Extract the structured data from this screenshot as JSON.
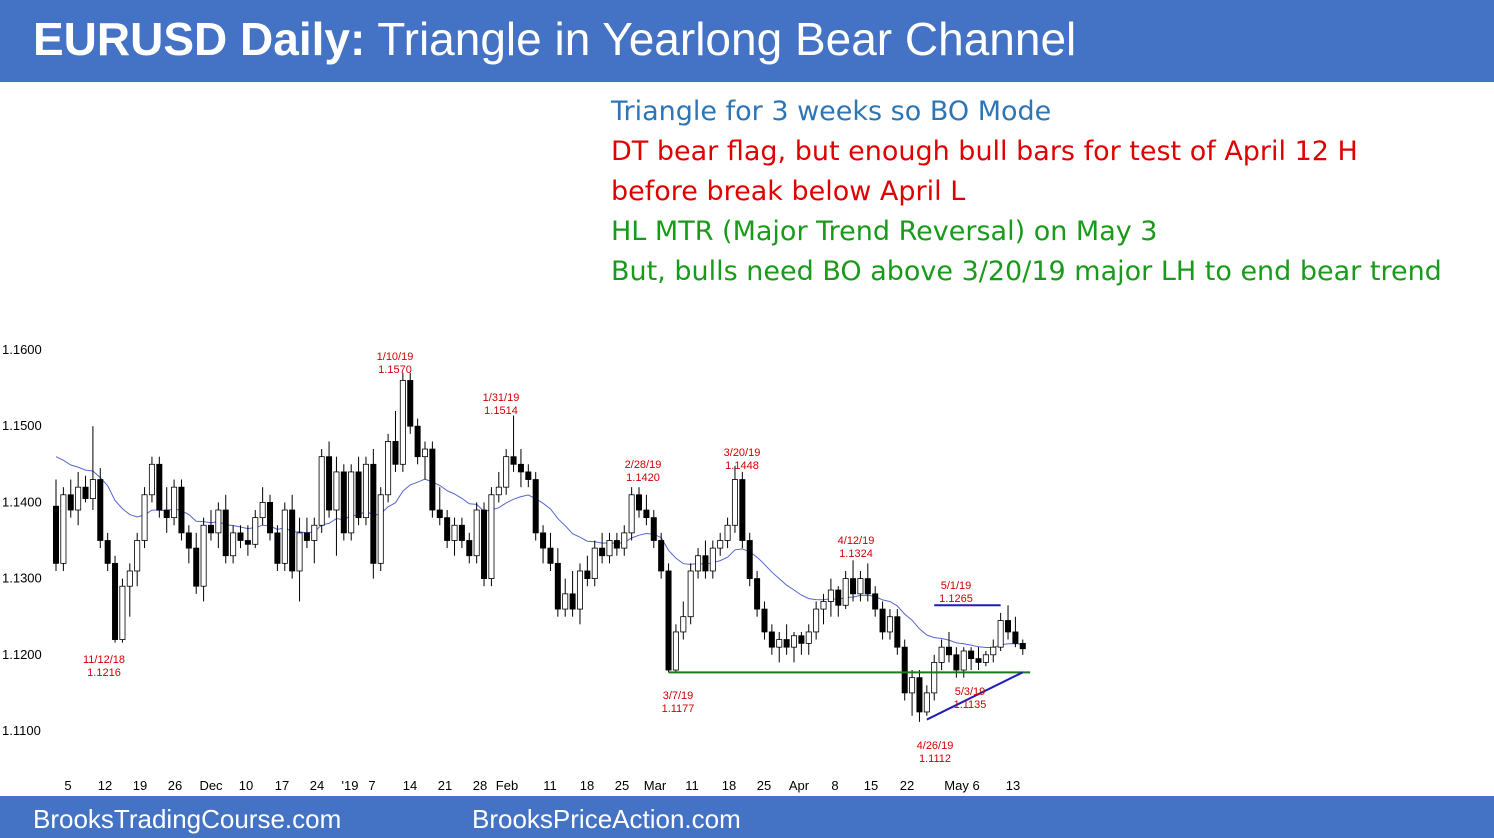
{
  "header": {
    "title_bold": "EURUSD Daily:",
    "title_rest": " Triangle in Yearlong Bear Channel"
  },
  "notes": [
    {
      "text": "Triangle for 3 weeks so BO Mode",
      "color": "#2e75b6"
    },
    {
      "text": "DT bear flag, but enough bull bars for test of April 12 H",
      "color": "#e00000"
    },
    {
      "text": "before break below April L",
      "color": "#e00000"
    },
    {
      "text": "HL MTR (Major Trend Reversal) on May 3",
      "color": "#1a9a1a"
    },
    {
      "text": "But, bulls need BO above 3/20/19 major LH to end bear trend",
      "color": "#1a9a1a"
    }
  ],
  "footer": {
    "left": "BrooksTradingCourse.com",
    "right": "BrooksPriceAction.com"
  },
  "chart_data": {
    "type": "candlestick",
    "y_ticks": [
      "1.1600",
      "1.1500",
      "1.1400",
      "1.1300",
      "1.1200",
      "1.1100"
    ],
    "ylim": [
      1.1075,
      1.1625
    ],
    "x_ticks": [
      "5",
      "12",
      "19",
      "26",
      "Dec",
      "10",
      "17",
      "24",
      "'19",
      "7",
      "14",
      "21",
      "28",
      "Feb",
      "11",
      "18",
      "25",
      "Mar",
      "11",
      "18",
      "25",
      "Apr",
      "8",
      "15",
      "22",
      "May 6",
      "13"
    ],
    "bar_up_color": "#ffffff",
    "bar_down_color": "#000000",
    "ema_color": "#5566cc",
    "bars": [
      [
        1.1395,
        1.143,
        1.131,
        1.132
      ],
      [
        1.132,
        1.142,
        1.131,
        1.141
      ],
      [
        1.141,
        1.143,
        1.138,
        1.139
      ],
      [
        1.139,
        1.144,
        1.137,
        1.142
      ],
      [
        1.142,
        1.1435,
        1.14,
        1.1405
      ],
      [
        1.1405,
        1.15,
        1.139,
        1.143
      ],
      [
        1.143,
        1.1445,
        1.134,
        1.135
      ],
      [
        1.135,
        1.136,
        1.131,
        1.132
      ],
      [
        1.132,
        1.133,
        1.1216,
        1.122
      ],
      [
        1.122,
        1.13,
        1.1216,
        1.129
      ],
      [
        1.129,
        1.132,
        1.125,
        1.131
      ],
      [
        1.131,
        1.136,
        1.129,
        1.135
      ],
      [
        1.135,
        1.142,
        1.134,
        1.141
      ],
      [
        1.141,
        1.146,
        1.14,
        1.145
      ],
      [
        1.145,
        1.146,
        1.138,
        1.139
      ],
      [
        1.139,
        1.142,
        1.136,
        1.138
      ],
      [
        1.138,
        1.143,
        1.137,
        1.142
      ],
      [
        1.142,
        1.143,
        1.135,
        1.136
      ],
      [
        1.136,
        1.137,
        1.132,
        1.134
      ],
      [
        1.134,
        1.136,
        1.128,
        1.129
      ],
      [
        1.129,
        1.138,
        1.127,
        1.137
      ],
      [
        1.137,
        1.139,
        1.135,
        1.136
      ],
      [
        1.136,
        1.14,
        1.134,
        1.139
      ],
      [
        1.139,
        1.141,
        1.132,
        1.133
      ],
      [
        1.133,
        1.137,
        1.132,
        1.136
      ],
      [
        1.136,
        1.137,
        1.134,
        1.135
      ],
      [
        1.135,
        1.137,
        1.133,
        1.1345
      ],
      [
        1.1345,
        1.139,
        1.134,
        1.138
      ],
      [
        1.138,
        1.142,
        1.137,
        1.14
      ],
      [
        1.14,
        1.141,
        1.135,
        1.136
      ],
      [
        1.136,
        1.137,
        1.131,
        1.132
      ],
      [
        1.132,
        1.14,
        1.131,
        1.139
      ],
      [
        1.139,
        1.141,
        1.13,
        1.131
      ],
      [
        1.131,
        1.138,
        1.127,
        1.136
      ],
      [
        1.136,
        1.138,
        1.134,
        1.135
      ],
      [
        1.135,
        1.138,
        1.132,
        1.137
      ],
      [
        1.137,
        1.147,
        1.136,
        1.146
      ],
      [
        1.146,
        1.148,
        1.138,
        1.139
      ],
      [
        1.139,
        1.146,
        1.133,
        1.144
      ],
      [
        1.144,
        1.145,
        1.135,
        1.136
      ],
      [
        1.136,
        1.145,
        1.135,
        1.144
      ],
      [
        1.144,
        1.146,
        1.137,
        1.138
      ],
      [
        1.138,
        1.146,
        1.137,
        1.145
      ],
      [
        1.145,
        1.147,
        1.13,
        1.132
      ],
      [
        1.132,
        1.142,
        1.131,
        1.141
      ],
      [
        1.141,
        1.149,
        1.14,
        1.148
      ],
      [
        1.148,
        1.152,
        1.144,
        1.145
      ],
      [
        1.145,
        1.157,
        1.144,
        1.156
      ],
      [
        1.156,
        1.157,
        1.149,
        1.15
      ],
      [
        1.15,
        1.151,
        1.145,
        1.146
      ],
      [
        1.146,
        1.148,
        1.143,
        1.147
      ],
      [
        1.147,
        1.148,
        1.138,
        1.139
      ],
      [
        1.139,
        1.142,
        1.137,
        1.138
      ],
      [
        1.138,
        1.139,
        1.134,
        1.135
      ],
      [
        1.135,
        1.138,
        1.133,
        1.137
      ],
      [
        1.137,
        1.138,
        1.134,
        1.135
      ],
      [
        1.135,
        1.136,
        1.132,
        1.133
      ],
      [
        1.133,
        1.14,
        1.132,
        1.139
      ],
      [
        1.139,
        1.14,
        1.129,
        1.13
      ],
      [
        1.13,
        1.142,
        1.129,
        1.141
      ],
      [
        1.141,
        1.144,
        1.14,
        1.142
      ],
      [
        1.142,
        1.147,
        1.141,
        1.146
      ],
      [
        1.146,
        1.1514,
        1.144,
        1.145
      ],
      [
        1.145,
        1.147,
        1.142,
        1.144
      ],
      [
        1.144,
        1.145,
        1.142,
        1.143
      ],
      [
        1.143,
        1.144,
        1.135,
        1.136
      ],
      [
        1.136,
        1.137,
        1.132,
        1.134
      ],
      [
        1.134,
        1.136,
        1.131,
        1.132
      ],
      [
        1.132,
        1.134,
        1.125,
        1.126
      ],
      [
        1.126,
        1.13,
        1.125,
        1.128
      ],
      [
        1.128,
        1.131,
        1.125,
        1.126
      ],
      [
        1.126,
        1.132,
        1.124,
        1.131
      ],
      [
        1.131,
        1.133,
        1.129,
        1.13
      ],
      [
        1.13,
        1.135,
        1.129,
        1.134
      ],
      [
        1.134,
        1.136,
        1.132,
        1.133
      ],
      [
        1.133,
        1.136,
        1.132,
        1.135
      ],
      [
        1.135,
        1.136,
        1.133,
        1.134
      ],
      [
        1.134,
        1.137,
        1.133,
        1.136
      ],
      [
        1.136,
        1.142,
        1.135,
        1.141
      ],
      [
        1.141,
        1.142,
        1.138,
        1.139
      ],
      [
        1.139,
        1.141,
        1.137,
        1.138
      ],
      [
        1.138,
        1.139,
        1.134,
        1.135
      ],
      [
        1.135,
        1.136,
        1.13,
        1.131
      ],
      [
        1.131,
        1.132,
        1.1177,
        1.118
      ],
      [
        1.118,
        1.124,
        1.1177,
        1.123
      ],
      [
        1.123,
        1.127,
        1.122,
        1.125
      ],
      [
        1.125,
        1.132,
        1.124,
        1.131
      ],
      [
        1.131,
        1.134,
        1.13,
        1.133
      ],
      [
        1.133,
        1.135,
        1.13,
        1.131
      ],
      [
        1.131,
        1.135,
        1.13,
        1.134
      ],
      [
        1.134,
        1.136,
        1.133,
        1.135
      ],
      [
        1.135,
        1.138,
        1.134,
        1.137
      ],
      [
        1.137,
        1.1448,
        1.136,
        1.143
      ],
      [
        1.143,
        1.144,
        1.134,
        1.135
      ],
      [
        1.135,
        1.136,
        1.129,
        1.13
      ],
      [
        1.13,
        1.131,
        1.125,
        1.126
      ],
      [
        1.126,
        1.127,
        1.122,
        1.123
      ],
      [
        1.123,
        1.124,
        1.12,
        1.121
      ],
      [
        1.121,
        1.123,
        1.119,
        1.122
      ],
      [
        1.122,
        1.124,
        1.12,
        1.121
      ],
      [
        1.121,
        1.123,
        1.119,
        1.1225
      ],
      [
        1.1225,
        1.123,
        1.12,
        1.1215
      ],
      [
        1.1215,
        1.124,
        1.12,
        1.123
      ],
      [
        1.123,
        1.127,
        1.122,
        1.126
      ],
      [
        1.126,
        1.128,
        1.124,
        1.127
      ],
      [
        1.127,
        1.13,
        1.125,
        1.1285
      ],
      [
        1.1285,
        1.129,
        1.125,
        1.1265
      ],
      [
        1.1265,
        1.131,
        1.126,
        1.13
      ],
      [
        1.13,
        1.1324,
        1.127,
        1.128
      ],
      [
        1.128,
        1.131,
        1.127,
        1.13
      ],
      [
        1.13,
        1.132,
        1.127,
        1.128
      ],
      [
        1.128,
        1.129,
        1.125,
        1.126
      ],
      [
        1.126,
        1.127,
        1.122,
        1.123
      ],
      [
        1.123,
        1.126,
        1.122,
        1.125
      ],
      [
        1.125,
        1.126,
        1.12,
        1.121
      ],
      [
        1.121,
        1.122,
        1.114,
        1.115
      ],
      [
        1.115,
        1.118,
        1.112,
        1.117
      ],
      [
        1.117,
        1.118,
        1.1112,
        1.1125
      ],
      [
        1.1125,
        1.116,
        1.112,
        1.115
      ],
      [
        1.115,
        1.12,
        1.114,
        1.119
      ],
      [
        1.119,
        1.122,
        1.118,
        1.121
      ],
      [
        1.121,
        1.123,
        1.119,
        1.12
      ],
      [
        1.12,
        1.121,
        1.117,
        1.118
      ],
      [
        1.118,
        1.121,
        1.117,
        1.1205
      ],
      [
        1.1205,
        1.121,
        1.118,
        1.1195
      ],
      [
        1.1195,
        1.121,
        1.118,
        1.119
      ],
      [
        1.119,
        1.1205,
        1.1185,
        1.12
      ],
      [
        1.12,
        1.122,
        1.119,
        1.121
      ],
      [
        1.121,
        1.1255,
        1.1205,
        1.1245
      ],
      [
        1.1245,
        1.1265,
        1.122,
        1.123
      ],
      [
        1.123,
        1.125,
        1.121,
        1.1215
      ],
      [
        1.1215,
        1.122,
        1.12,
        1.1208
      ]
    ],
    "annotations": [
      {
        "date": "11/12/18",
        "price": "1.1216"
      },
      {
        "date": "1/10/19",
        "price": "1.1570"
      },
      {
        "date": "1/31/19",
        "price": "1.1514"
      },
      {
        "date": "2/28/19",
        "price": "1.1420"
      },
      {
        "date": "3/7/19",
        "price": "1.1177"
      },
      {
        "date": "3/20/19",
        "price": "1.1448"
      },
      {
        "date": "4/12/19",
        "price": "1.1324"
      },
      {
        "date": "5/1/19",
        "price": "1.1265"
      },
      {
        "date": "5/3/19",
        "price": "1.1135"
      },
      {
        "date": "4/26/19",
        "price": "1.1112"
      }
    ],
    "lines": [
      {
        "name": "support",
        "color": "#1a7a1a",
        "from": [
          83,
          1.1177
        ],
        "to": [
          132,
          1.1177
        ]
      },
      {
        "name": "triangle-top",
        "color": "#1f1fb4",
        "from": [
          119,
          1.1265
        ],
        "to": [
          128,
          1.1265
        ]
      },
      {
        "name": "triangle-bottom",
        "color": "#1f1fb4",
        "from": [
          118,
          1.1115
        ],
        "to": [
          131,
          1.1177
        ]
      }
    ]
  }
}
